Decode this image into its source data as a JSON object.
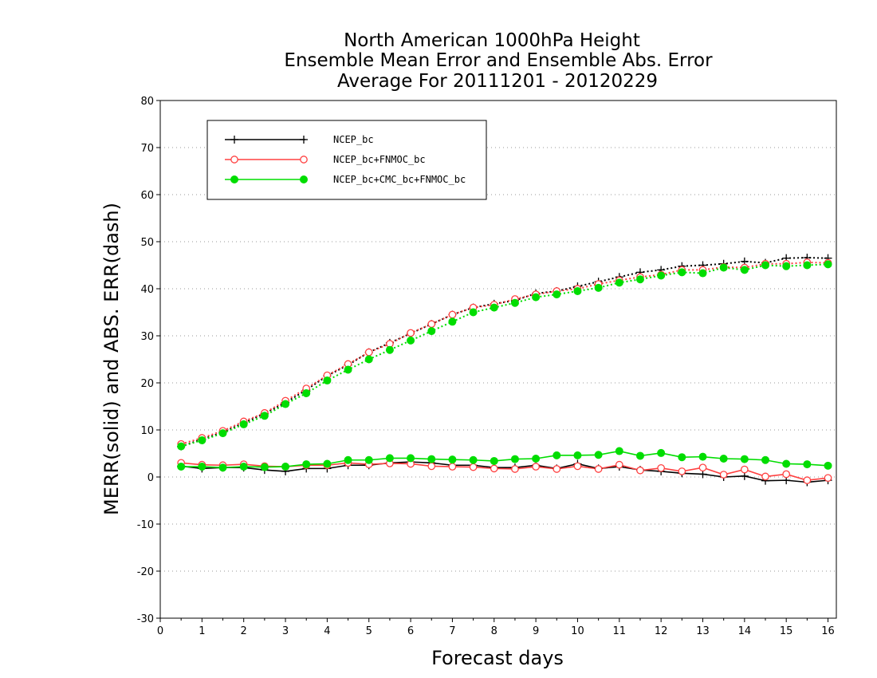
{
  "chart_data": {
    "type": "line",
    "title_lines": [
      "North American 1000hPa Height",
      "Ensemble Mean Error and Ensemble Abs. Error",
      "Average For 20111201 - 20120229"
    ],
    "xlabel": "Forecast days",
    "ylabel": "MERR(solid) and ABS. ERR(dash)",
    "xlim": [
      0,
      16.2
    ],
    "ylim": [
      -30,
      80
    ],
    "xticks": [
      "0",
      "1",
      "2",
      "3",
      "4",
      "5",
      "6",
      "7",
      "8",
      "9",
      "10",
      "11",
      "12",
      "13",
      "14",
      "15",
      "16"
    ],
    "yticks": [
      -30,
      -20,
      -10,
      0,
      10,
      20,
      30,
      40,
      50,
      60,
      70,
      80
    ],
    "y_tick_labels": [
      "-30",
      "-20",
      "-10",
      "0",
      "10",
      "20",
      "30",
      "40",
      "50",
      "60",
      "70",
      "80"
    ],
    "grid": "horizontal dotted",
    "legend_position": "top-left",
    "x": [
      0.5,
      1,
      1.5,
      2,
      2.5,
      3,
      3.5,
      4,
      4.5,
      5,
      5.5,
      6,
      6.5,
      7,
      7.5,
      8,
      8.5,
      9,
      9.5,
      10,
      10.5,
      11,
      11.5,
      12,
      12.5,
      13,
      13.5,
      14,
      14.5,
      15,
      15.5,
      16
    ],
    "series": [
      {
        "name": "NCEP_bc",
        "color": "#000000",
        "marker": "plus",
        "merr": [
          2.3,
          1.8,
          2.0,
          2.0,
          1.5,
          1.2,
          1.8,
          1.8,
          2.5,
          2.5,
          3.0,
          3.2,
          3.0,
          2.5,
          2.5,
          2.0,
          2.0,
          2.5,
          1.8,
          2.8,
          1.8,
          2.2,
          1.5,
          1.2,
          0.8,
          0.6,
          0.0,
          0.2,
          -0.8,
          -0.7,
          -1.1,
          -0.7
        ],
        "abs_err": [
          6.5,
          8.0,
          9.5,
          11.5,
          13.5,
          15.8,
          18.5,
          21.5,
          23.8,
          26.5,
          28.5,
          30.5,
          32.5,
          34.5,
          36.0,
          36.8,
          37.5,
          39.0,
          39.5,
          40.5,
          41.5,
          42.5,
          43.5,
          44.0,
          44.8,
          45.0,
          45.3,
          45.8,
          45.5,
          46.5,
          46.6,
          46.5
        ]
      },
      {
        "name": "NCEP_bc+FNMOC_bc",
        "color": "#ff4040",
        "marker": "open-circle",
        "merr": [
          3.0,
          2.6,
          2.5,
          2.7,
          2.3,
          2.2,
          2.5,
          2.5,
          3.0,
          2.7,
          2.9,
          2.8,
          2.3,
          2.2,
          2.1,
          1.8,
          1.7,
          2.2,
          1.7,
          2.3,
          1.7,
          2.6,
          1.4,
          1.9,
          1.2,
          2.0,
          0.5,
          1.6,
          0.1,
          0.6,
          -0.7,
          -0.2
        ],
        "abs_err": [
          7.0,
          8.3,
          9.8,
          11.8,
          13.6,
          16.2,
          18.8,
          21.6,
          24.0,
          26.5,
          28.3,
          30.6,
          32.5,
          34.5,
          36.0,
          36.6,
          37.8,
          38.8,
          39.5,
          40.0,
          41.0,
          41.8,
          42.5,
          43.0,
          44.0,
          44.0,
          44.6,
          44.5,
          45.3,
          45.3,
          45.6,
          45.5
        ]
      },
      {
        "name": "NCEP_bc+CMC_bc+FNMOC_bc",
        "color": "#00dd00",
        "marker": "filled-circle",
        "merr": [
          2.2,
          2.2,
          2.0,
          2.2,
          2.1,
          2.2,
          2.7,
          2.8,
          3.6,
          3.6,
          4.0,
          4.0,
          3.8,
          3.7,
          3.6,
          3.4,
          3.8,
          3.9,
          4.6,
          4.6,
          4.7,
          5.5,
          4.5,
          5.1,
          4.2,
          4.3,
          3.9,
          3.8,
          3.6,
          2.8,
          2.7,
          2.4
        ],
        "abs_err": [
          6.5,
          7.8,
          9.3,
          11.2,
          13.0,
          15.5,
          17.8,
          20.5,
          22.8,
          25.0,
          27.0,
          29.0,
          31.0,
          33.0,
          35.0,
          36.0,
          37.0,
          38.2,
          38.8,
          39.5,
          40.2,
          41.3,
          42.0,
          42.8,
          43.5,
          43.3,
          44.5,
          44.0,
          45.0,
          44.8,
          45.0,
          45.2
        ]
      }
    ]
  }
}
